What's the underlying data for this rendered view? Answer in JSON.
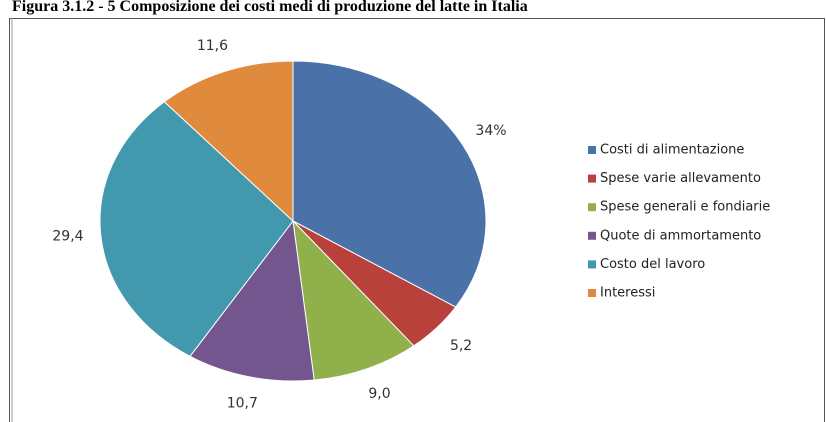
{
  "chart_data": {
    "type": "pie",
    "title": "Figura 3.1.2 - 5 Composizione dei costi medi di produzione del latte in Italia",
    "categories": [
      "Costi di alimentazione",
      "Spese varie allevamento",
      "Spese generali e fondiarie",
      "Quote di ammortamento",
      "Costo del lavoro",
      "Interessi"
    ],
    "values": [
      34,
      5.2,
      9.0,
      10.7,
      29.4,
      11.6
    ],
    "value_labels": [
      "34%",
      "5,2",
      "9,0",
      "10,7",
      "29,4",
      "11,6"
    ],
    "colors": [
      "#4a72a8",
      "#b8413c",
      "#8fb04a",
      "#74568f",
      "#4298ad",
      "#e08a3e"
    ],
    "legend": "right"
  }
}
